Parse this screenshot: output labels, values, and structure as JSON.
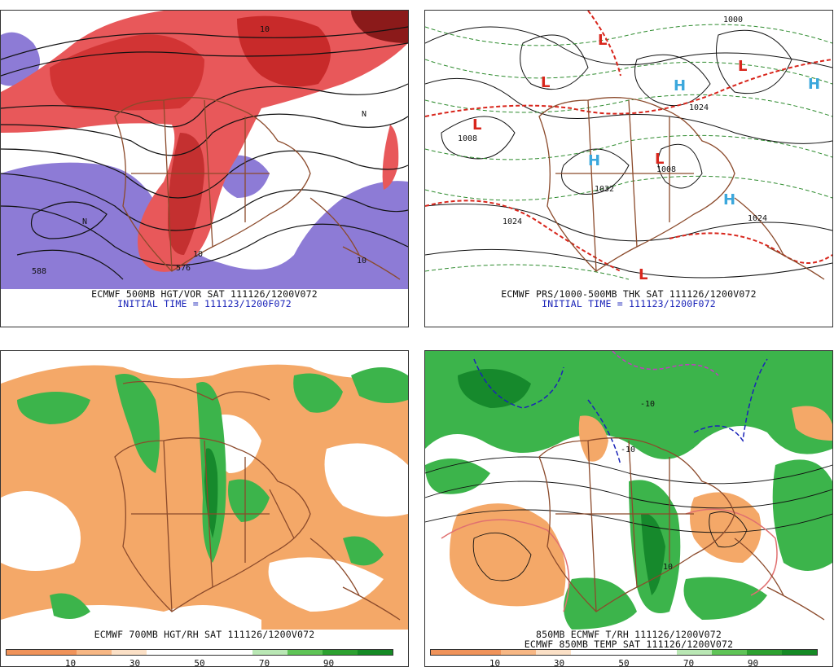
{
  "panels": [
    {
      "caption": "ECMWF 500MB HGT/VOR SAT 111126/1200V072",
      "init": "INITIAL TIME = 111123/1200F072",
      "labels": [
        "588",
        "576",
        "N",
        "N",
        "10",
        "10",
        "10"
      ]
    },
    {
      "caption": "ECMWF PRS/1000-500MB THK SAT 111126/1200V072",
      "init": "INITIAL TIME = 111123/1200F072",
      "labels": [
        "1024",
        "1024",
        "1024",
        "1008",
        "1008",
        "1000",
        "1032"
      ],
      "highs": [
        "H",
        "H",
        "H",
        "H"
      ],
      "lows": [
        "L",
        "L",
        "L",
        "L",
        "L",
        "L"
      ]
    },
    {
      "caption": "ECMWF 700MB HGT/RH SAT 111126/1200V072",
      "colorbar_ticks": [
        "10",
        "30",
        "50",
        "70",
        "90"
      ]
    },
    {
      "caption": "850MB ECMWF T/RH 111126/1200V072",
      "caption2": "ECMWF 850MB TEMP SAT 111126/1200V072",
      "labels": [
        "10",
        "-10",
        "-10"
      ],
      "colorbar_ticks": [
        "10",
        "30",
        "50",
        "70",
        "90"
      ]
    }
  ],
  "colors": {
    "dry": "#f4a868",
    "dry_light": "#f8c592",
    "moist": "#3cb44b",
    "moist_dark": "#16892c",
    "vort_red": "#e33b3b",
    "vort_dark": "#8b1a1a",
    "neg_vort": "#8d7bd6",
    "borders": "#8b4a2b",
    "high": "#3ba7dc",
    "low": "#d8261c"
  },
  "colorbar": [
    "#f0935a",
    "#f0935a",
    "#f7b784",
    "#fbe0c6",
    "#ffffff",
    "#ffffff",
    "#ffffff",
    "#b9e7b4",
    "#5fc457",
    "#2da130",
    "#158a25"
  ]
}
